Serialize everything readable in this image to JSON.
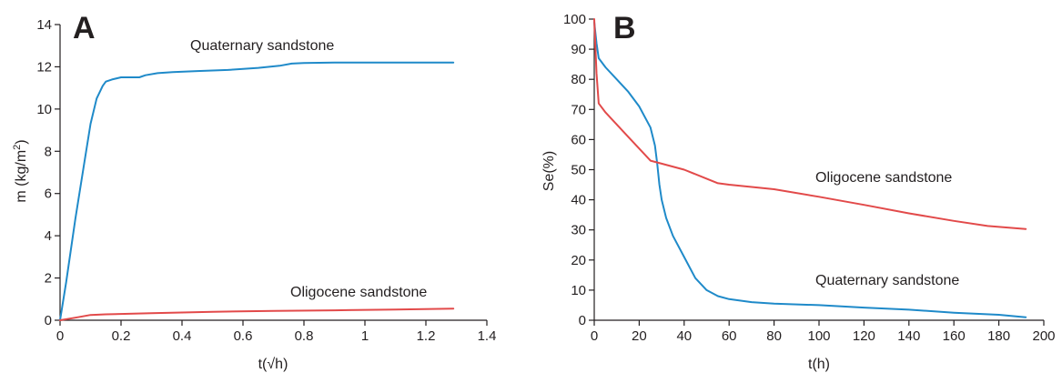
{
  "chart_data": [
    {
      "panel": "A",
      "type": "line",
      "xlabel": "t(√h)",
      "ylabel_main": "m (kg/m",
      "ylabel_sup": "2",
      "ylabel_end": ")",
      "xlim": [
        0,
        1.4
      ],
      "ylim": [
        0,
        14
      ],
      "xticks": [
        0,
        0.2,
        0.4,
        0.6,
        0.8,
        1,
        1.2,
        1.4
      ],
      "yticks": [
        0,
        2,
        4,
        6,
        8,
        10,
        12,
        14
      ],
      "grid": false,
      "series": [
        {
          "name": "Quaternary sandstone",
          "color": "#1f8ac9",
          "x": [
            0,
            0.02,
            0.05,
            0.08,
            0.1,
            0.12,
            0.14,
            0.15,
            0.17,
            0.2,
            0.23,
            0.26,
            0.28,
            0.32,
            0.37,
            0.45,
            0.55,
            0.65,
            0.72,
            0.76,
            0.8,
            0.9,
            1.0,
            1.1,
            1.2,
            1.29
          ],
          "y": [
            0,
            1.8,
            4.8,
            7.5,
            9.3,
            10.5,
            11.1,
            11.3,
            11.4,
            11.5,
            11.5,
            11.5,
            11.6,
            11.7,
            11.75,
            11.8,
            11.85,
            11.95,
            12.05,
            12.15,
            12.18,
            12.2,
            12.2,
            12.2,
            12.2,
            12.2
          ]
        },
        {
          "name": "Oligocene sandstone",
          "color": "#e24a4a",
          "x": [
            0,
            0.05,
            0.1,
            0.15,
            0.3,
            0.5,
            0.7,
            0.9,
            1.1,
            1.29
          ],
          "y": [
            0,
            0.12,
            0.25,
            0.28,
            0.33,
            0.4,
            0.44,
            0.47,
            0.51,
            0.55
          ]
        }
      ]
    },
    {
      "panel": "B",
      "type": "line",
      "xlabel": "t(h)",
      "ylabel": "Se(%)",
      "xlim": [
        0,
        200
      ],
      "ylim": [
        0,
        100
      ],
      "xticks": [
        0,
        20,
        40,
        60,
        80,
        100,
        120,
        140,
        160,
        180,
        200
      ],
      "yticks": [
        0,
        10,
        20,
        30,
        40,
        50,
        60,
        70,
        80,
        90,
        100
      ],
      "grid": false,
      "series": [
        {
          "name": "Quaternary sandstone",
          "color": "#1f8ac9",
          "x": [
            0,
            1,
            2,
            5,
            10,
            15,
            20,
            25,
            27,
            28,
            29,
            30,
            32,
            35,
            40,
            45,
            50,
            55,
            60,
            70,
            80,
            100,
            120,
            140,
            160,
            180,
            192
          ],
          "y": [
            99,
            92,
            87,
            84,
            80,
            76,
            71,
            64,
            58,
            52,
            45,
            40,
            34,
            28,
            21,
            14,
            10,
            8,
            7,
            6,
            5.5,
            5,
            4.2,
            3.5,
            2.5,
            1.8,
            1
          ]
        },
        {
          "name": "Oligocene sandstone",
          "color": "#e24a4a",
          "x": [
            0,
            1,
            2,
            5,
            10,
            15,
            20,
            25,
            30,
            40,
            50,
            55,
            60,
            80,
            100,
            120,
            140,
            160,
            175,
            192
          ],
          "y": [
            100,
            82,
            72,
            69,
            65,
            61,
            57,
            53,
            52,
            50,
            47,
            45.5,
            45,
            43.5,
            41,
            38.3,
            35.5,
            33,
            31.3,
            30.3
          ]
        }
      ]
    }
  ],
  "annotations": {
    "panel_a_quaternary": "Quaternary sandstone",
    "panel_a_oligocene": "Oligocene sandstone",
    "panel_b_oligocene": "Oligocene sandstone",
    "panel_b_quaternary": "Quaternary sandstone"
  }
}
